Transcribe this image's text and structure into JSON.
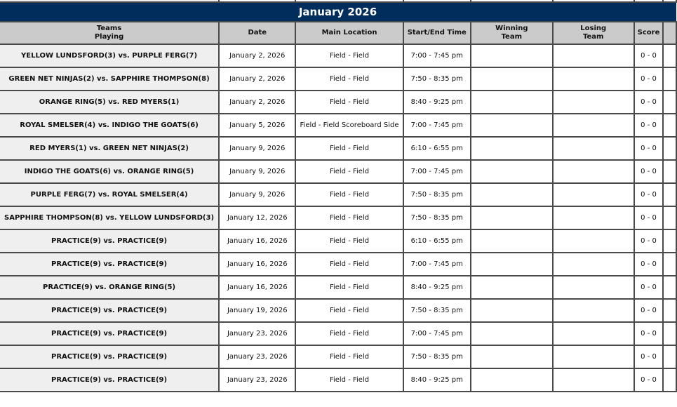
{
  "month_title": "January 2026",
  "headers": {
    "teams": [
      "Teams",
      "Playing"
    ],
    "date": "Date",
    "location": "Main Location",
    "time": "Start/End Time",
    "winning": [
      "Winning",
      "Team"
    ],
    "losing": [
      "Losing",
      "Team"
    ],
    "score": "Score"
  },
  "colors": {
    "month_bar": "#002d5c",
    "header_bg": "#cbcbcb",
    "teams_bg": "#efefef"
  },
  "games": [
    {
      "teams": "YELLOW LUNDSFORD(3) vs. PURPLE FERG(7)",
      "date": "January 2, 2026",
      "location": "Field - Field",
      "time": "7:00 - 7:45 pm",
      "winning": "",
      "losing": "",
      "score": "0 - 0"
    },
    {
      "teams": "GREEN NET NINJAS(2) vs. SAPPHIRE THOMPSON(8)",
      "date": "January 2, 2026",
      "location": "Field - Field",
      "time": "7:50 - 8:35 pm",
      "winning": "",
      "losing": "",
      "score": "0 - 0"
    },
    {
      "teams": "ORANGE RING(5) vs. RED MYERS(1)",
      "date": "January 2, 2026",
      "location": "Field - Field",
      "time": "8:40 - 9:25 pm",
      "winning": "",
      "losing": "",
      "score": "0 - 0"
    },
    {
      "teams": "ROYAL SMELSER(4) vs. INDIGO THE GOATS(6)",
      "date": "January 5, 2026",
      "location": "Field - Field Scoreboard Side",
      "time": "7:00 - 7:45 pm",
      "winning": "",
      "losing": "",
      "score": "0 - 0"
    },
    {
      "teams": "RED MYERS(1) vs. GREEN NET NINJAS(2)",
      "date": "January 9, 2026",
      "location": "Field - Field",
      "time": "6:10 - 6:55 pm",
      "winning": "",
      "losing": "",
      "score": "0 - 0"
    },
    {
      "teams": "INDIGO THE GOATS(6) vs. ORANGE RING(5)",
      "date": "January 9, 2026",
      "location": "Field - Field",
      "time": "7:00 - 7:45 pm",
      "winning": "",
      "losing": "",
      "score": "0 - 0"
    },
    {
      "teams": "PURPLE FERG(7) vs. ROYAL SMELSER(4)",
      "date": "January 9, 2026",
      "location": "Field - Field",
      "time": "7:50 - 8:35 pm",
      "winning": "",
      "losing": "",
      "score": "0 - 0"
    },
    {
      "teams": "SAPPHIRE THOMPSON(8) vs. YELLOW LUNDSFORD(3)",
      "date": "January 12, 2026",
      "location": "Field - Field",
      "time": "7:50 - 8:35 pm",
      "winning": "",
      "losing": "",
      "score": "0 - 0"
    },
    {
      "teams": "PRACTICE(9) vs. PRACTICE(9)",
      "date": "January 16, 2026",
      "location": "Field - Field",
      "time": "6:10 - 6:55 pm",
      "winning": "",
      "losing": "",
      "score": "0 - 0"
    },
    {
      "teams": "PRACTICE(9) vs. PRACTICE(9)",
      "date": "January 16, 2026",
      "location": "Field - Field",
      "time": "7:00 - 7:45 pm",
      "winning": "",
      "losing": "",
      "score": "0 - 0"
    },
    {
      "teams": "PRACTICE(9) vs. ORANGE RING(5)",
      "date": "January 16, 2026",
      "location": "Field - Field",
      "time": "8:40 - 9:25 pm",
      "winning": "",
      "losing": "",
      "score": "0 - 0"
    },
    {
      "teams": "PRACTICE(9) vs. PRACTICE(9)",
      "date": "January 19, 2026",
      "location": "Field - Field",
      "time": "7:50 - 8:35 pm",
      "winning": "",
      "losing": "",
      "score": "0 - 0"
    },
    {
      "teams": "PRACTICE(9) vs. PRACTICE(9)",
      "date": "January 23, 2026",
      "location": "Field - Field",
      "time": "7:00 - 7:45 pm",
      "winning": "",
      "losing": "",
      "score": "0 - 0"
    },
    {
      "teams": "PRACTICE(9) vs. PRACTICE(9)",
      "date": "January 23, 2026",
      "location": "Field - Field",
      "time": "7:50 - 8:35 pm",
      "winning": "",
      "losing": "",
      "score": "0 - 0"
    },
    {
      "teams": "PRACTICE(9) vs. PRACTICE(9)",
      "date": "January 23, 2026",
      "location": "Field - Field",
      "time": "8:40 - 9:25 pm",
      "winning": "",
      "losing": "",
      "score": "0 - 0"
    }
  ]
}
